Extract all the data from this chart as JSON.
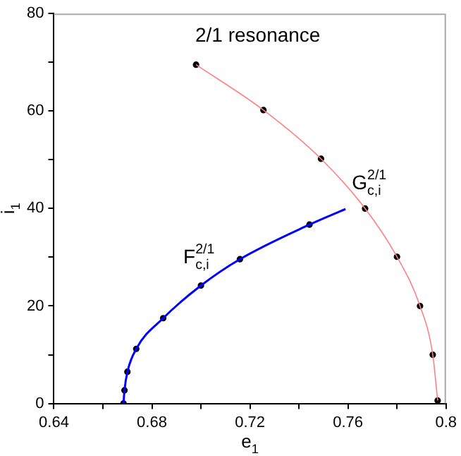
{
  "chart_data": {
    "type": "line",
    "title": "2/1 resonance",
    "xlabel": "e$_{1}$",
    "ylabel": "i$_{1}$",
    "xlim": [
      0.64,
      0.8
    ],
    "xticks": [
      0.64,
      {
        "value": 0.66,
        "label": null
      },
      0.68,
      {
        "value": 0.7,
        "label": null
      },
      0.72,
      {
        "value": 0.74,
        "label": null
      },
      0.76,
      {
        "value": 0.78,
        "label": null
      },
      0.8
    ],
    "ylim": [
      0,
      80
    ],
    "yticks": [
      0,
      {
        "value": 10,
        "label": null
      },
      20,
      {
        "value": 30,
        "label": null
      },
      40,
      {
        "value": 50,
        "label": null
      },
      60,
      {
        "value": 70,
        "label": null
      },
      80
    ],
    "grid": false,
    "legend": false,
    "line_style": "solid",
    "series": [
      {
        "type": "line",
        "color": "#ff8080",
        "marker": "none",
        "x": [
          0.698,
          0.7255,
          0.749,
          0.767,
          0.78,
          0.7894,
          0.7946,
          0.7966
        ],
        "values": [
          69.5,
          60.2,
          50.2,
          40,
          30.1,
          20,
          10,
          0.6
        ]
      },
      {
        "type": "line",
        "color": "#0000ff",
        "marker": "none",
        "x": [
          0.6684,
          0.6688,
          0.67,
          0.6736,
          0.6846,
          0.7,
          0.7159,
          0.7443,
          0.759
        ],
        "values": [
          0,
          2.7,
          6.5,
          11.2,
          17.5,
          24.2,
          29.6,
          36.7,
          39.9
        ]
      },
      {
        "type": "scatter",
        "color": "#000000",
        "marker": "circle",
        "x": [
          0.698,
          0.7255,
          0.749,
          0.767,
          0.78,
          0.7894,
          0.7946,
          0.7966,
          0.6684,
          0.6688,
          0.67,
          0.6736,
          0.6846,
          0.7,
          0.7159,
          0.7443
        ],
        "values": [
          69.5,
          60.2,
          50.2,
          40,
          30.1,
          20,
          10,
          0.6,
          0,
          2.7,
          6.5,
          11.2,
          17.5,
          24.2,
          29.6,
          36.7
        ]
      }
    ],
    "annotations": [
      "G$_{c,i}$$^{2/1}$",
      "F$_{c,i}$$^{2/1}$"
    ]
  }
}
